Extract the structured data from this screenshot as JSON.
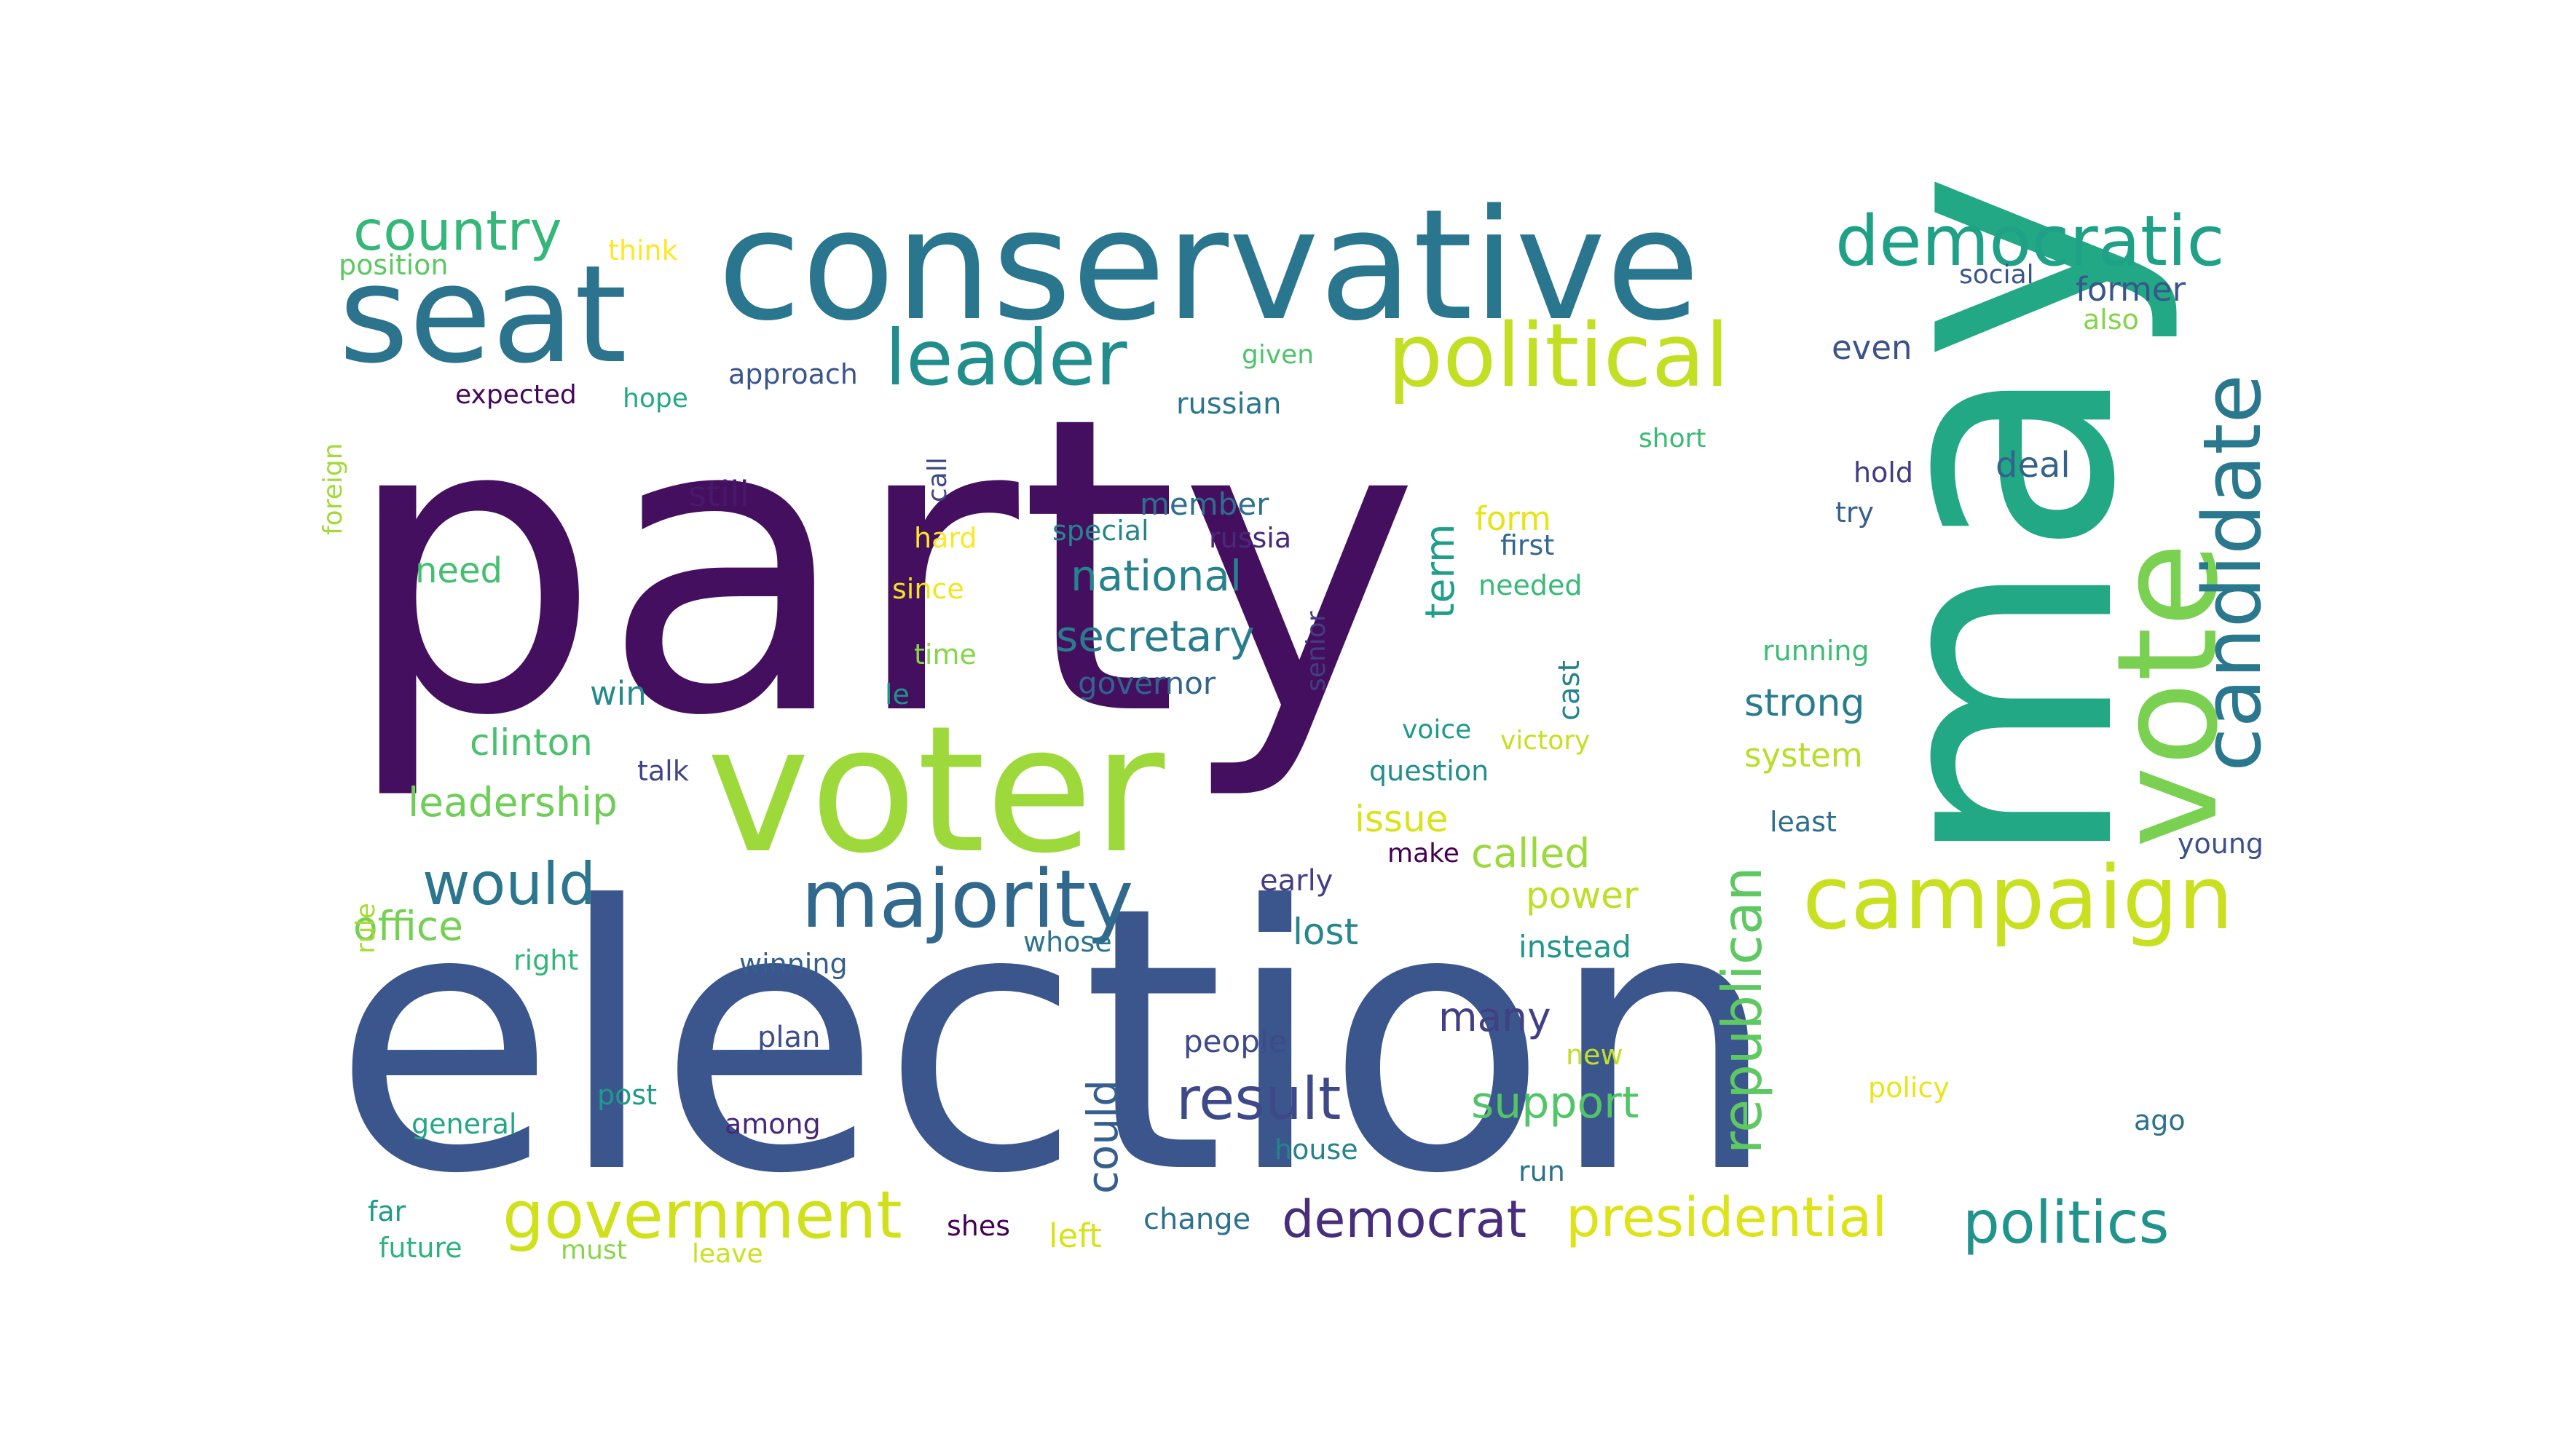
{
  "word_cloud": {
    "words": [
      {
        "text": "party",
        "color": "#440f5e"
      },
      {
        "text": "election",
        "color": "#3b568c"
      },
      {
        "text": "may",
        "color": "#22a884"
      },
      {
        "text": "voter",
        "color": "#9dd93b"
      },
      {
        "text": "conservative",
        "color": "#2a768e"
      },
      {
        "text": "seat",
        "color": "#2c738e"
      },
      {
        "text": "vote",
        "color": "#7ad151"
      },
      {
        "text": "political",
        "color": "#c2df23"
      },
      {
        "text": "candidate",
        "color": "#2a788e"
      },
      {
        "text": "democratic",
        "color": "#1fa187"
      },
      {
        "text": "leader",
        "color": "#228d8d"
      },
      {
        "text": "campaign",
        "color": "#c8e020"
      },
      {
        "text": "majority",
        "color": "#31688e"
      },
      {
        "text": "country",
        "color": "#35b779"
      },
      {
        "text": "republican",
        "color": "#5ec962"
      },
      {
        "text": "government",
        "color": "#d0e11c"
      },
      {
        "text": "politics",
        "color": "#20938c"
      },
      {
        "text": "presidential",
        "color": "#dde318"
      },
      {
        "text": "result",
        "color": "#3e4989"
      },
      {
        "text": "would",
        "color": "#2b758e"
      },
      {
        "text": "democrat",
        "color": "#472d7b"
      },
      {
        "text": "secretary",
        "color": "#287c8e"
      },
      {
        "text": "national",
        "color": "#26828e"
      },
      {
        "text": "could",
        "color": "#355f8d"
      },
      {
        "text": "leadership",
        "color": "#6ece58"
      },
      {
        "text": "support",
        "color": "#52c569"
      },
      {
        "text": "term",
        "color": "#1f9e89"
      },
      {
        "text": "office",
        "color": "#75d054"
      },
      {
        "text": "called",
        "color": "#9bd93c"
      },
      {
        "text": "strong",
        "color": "#297b8e"
      },
      {
        "text": "many",
        "color": "#423f85"
      },
      {
        "text": "lost",
        "color": "#24868e"
      },
      {
        "text": "power",
        "color": "#bddf26"
      },
      {
        "text": "issue",
        "color": "#dae319"
      },
      {
        "text": "clinton",
        "color": "#4ac16d"
      },
      {
        "text": "still",
        "color": "#48186a"
      },
      {
        "text": "deal",
        "color": "#33638d"
      },
      {
        "text": "form",
        "color": "#e5e419"
      },
      {
        "text": "system",
        "color": "#b8de29"
      },
      {
        "text": "need",
        "color": "#44bf70"
      },
      {
        "text": "even",
        "color": "#3b528b"
      },
      {
        "text": "former",
        "color": "#39568c"
      },
      {
        "text": "member",
        "color": "#2e6e8e"
      },
      {
        "text": "governor",
        "color": "#32648e"
      },
      {
        "text": "instead",
        "color": "#1f978b"
      },
      {
        "text": "left",
        "color": "#d8e219"
      },
      {
        "text": "win",
        "color": "#238a8d"
      },
      {
        "text": "people",
        "color": "#3e4a89"
      },
      {
        "text": "cast",
        "color": "#25838e"
      },
      {
        "text": "russian",
        "color": "#2a768e"
      },
      {
        "text": "change",
        "color": "#2c728e"
      },
      {
        "text": "early",
        "color": "#433e85"
      },
      {
        "text": "question",
        "color": "#218f8d"
      },
      {
        "text": "approach",
        "color": "#3a548c"
      },
      {
        "text": "running",
        "color": "#3dbc74"
      },
      {
        "text": "general",
        "color": "#22a785"
      },
      {
        "text": "position",
        "color": "#5cc863"
      },
      {
        "text": "whose",
        "color": "#2c738e"
      },
      {
        "text": "winning",
        "color": "#355f8d"
      },
      {
        "text": "russia",
        "color": "#472a7a"
      },
      {
        "text": "special",
        "color": "#25858e"
      },
      {
        "text": "first",
        "color": "#31688e"
      },
      {
        "text": "needed",
        "color": "#38b977"
      },
      {
        "text": "plan",
        "color": "#3e4c8a"
      },
      {
        "text": "among",
        "color": "#482979"
      },
      {
        "text": "talk",
        "color": "#404588"
      },
      {
        "text": "victory",
        "color": "#c5e021"
      },
      {
        "text": "voice",
        "color": "#1f9a8a"
      },
      {
        "text": "expected",
        "color": "#46085c"
      },
      {
        "text": "hope",
        "color": "#23a983"
      },
      {
        "text": "given",
        "color": "#4ec36b"
      },
      {
        "text": "short",
        "color": "#3aba76"
      },
      {
        "text": "hold",
        "color": "#443a83"
      },
      {
        "text": "try",
        "color": "#355e8d"
      },
      {
        "text": "social",
        "color": "#39568c"
      },
      {
        "text": "also",
        "color": "#84d44b"
      },
      {
        "text": "least",
        "color": "#2e6f8e"
      },
      {
        "text": "young",
        "color": "#3b518b"
      },
      {
        "text": "think",
        "color": "#fde725"
      },
      {
        "text": "foreign",
        "color": "#a2da37"
      },
      {
        "text": "call",
        "color": "#3f4788"
      },
      {
        "text": "hard",
        "color": "#fde725"
      },
      {
        "text": "since",
        "color": "#f1e51d"
      },
      {
        "text": "time",
        "color": "#86d549"
      },
      {
        "text": "le",
        "color": "#20928c"
      },
      {
        "text": "senior",
        "color": "#433d84"
      },
      {
        "text": "make",
        "color": "#440154"
      },
      {
        "text": "rule",
        "color": "#a8db34"
      },
      {
        "text": "right",
        "color": "#34b679"
      },
      {
        "text": "post",
        "color": "#1f9a8a"
      },
      {
        "text": "house",
        "color": "#25838e"
      },
      {
        "text": "run",
        "color": "#2c728e"
      },
      {
        "text": "new",
        "color": "#c0df25"
      },
      {
        "text": "policy",
        "color": "#eae51a"
      },
      {
        "text": "ago",
        "color": "#2d708e"
      },
      {
        "text": "far",
        "color": "#1e9b8a"
      },
      {
        "text": "future",
        "color": "#2db27d"
      },
      {
        "text": "must",
        "color": "#89d548"
      },
      {
        "text": "leave",
        "color": "#cae11f"
      },
      {
        "text": "shes",
        "color": "#440154"
      }
    ]
  }
}
